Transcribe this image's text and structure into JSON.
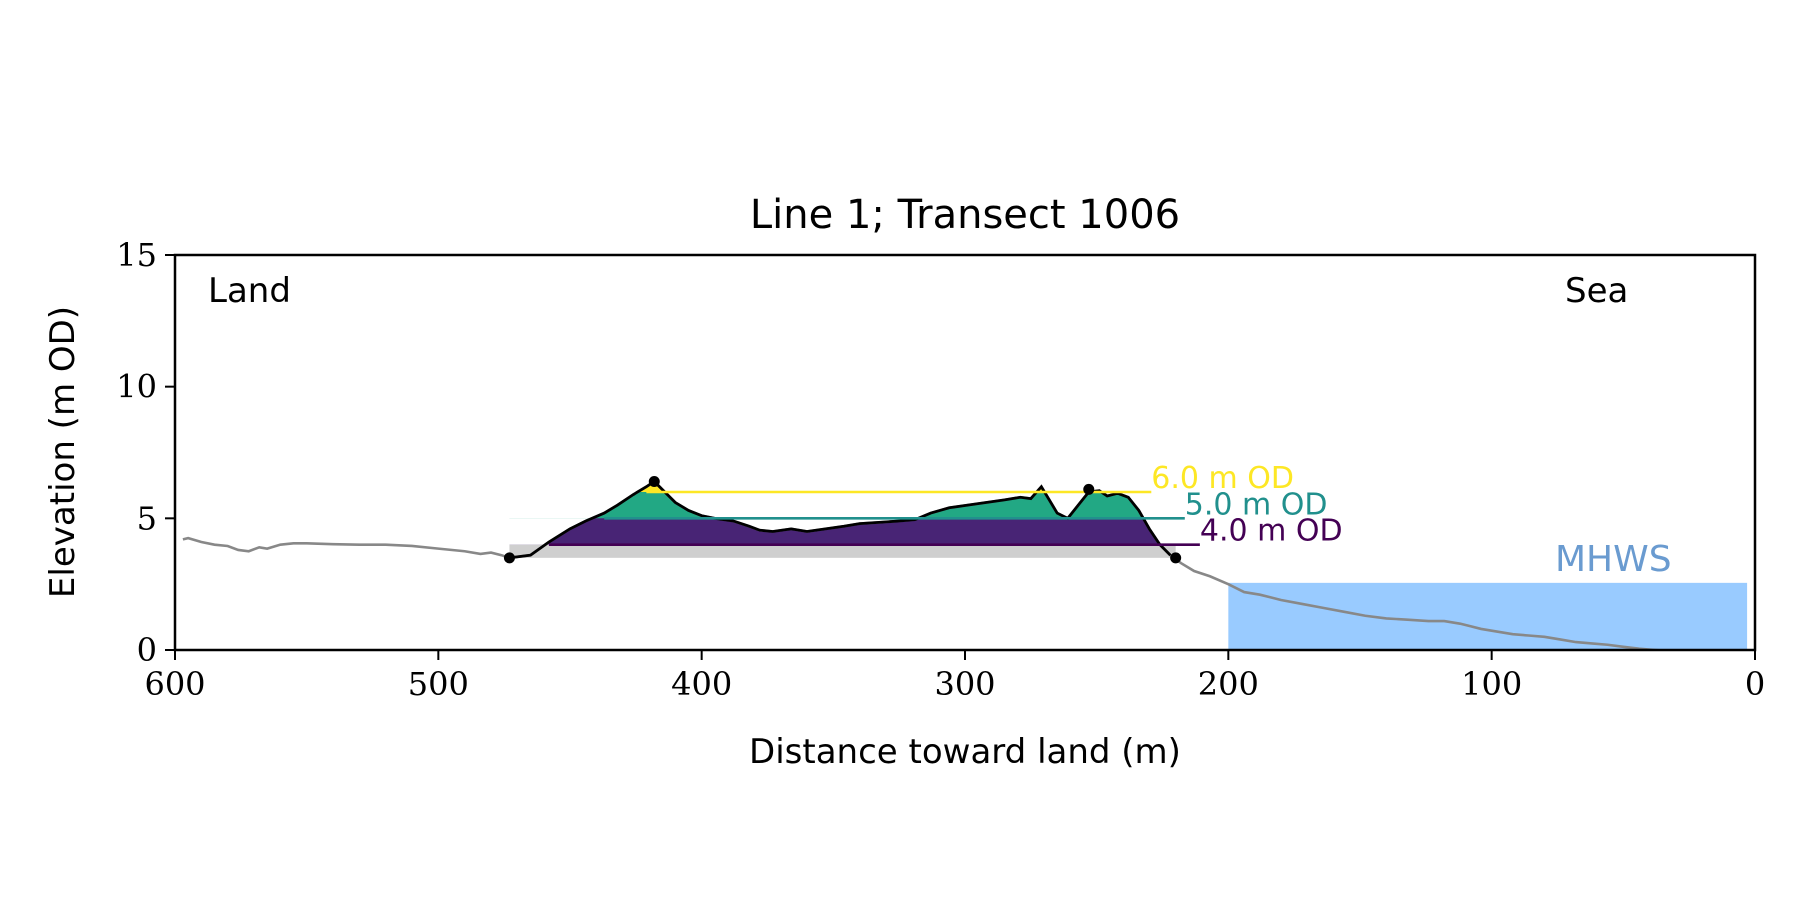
{
  "chart_data": {
    "type": "area",
    "title": "Line 1; Transect 1006",
    "xlabel": "Distance toward land (m)",
    "ylabel": "Elevation (m OD)",
    "xlim": [
      600,
      0
    ],
    "ylim": [
      0,
      15
    ],
    "x_ticks": [
      600,
      500,
      400,
      300,
      200,
      100,
      0
    ],
    "y_ticks": [
      0,
      5,
      10,
      15
    ],
    "x_tick_labels": [
      "600",
      "500",
      "400",
      "300",
      "200",
      "100",
      "0"
    ],
    "y_tick_labels": [
      "0",
      "5",
      "10",
      "15"
    ],
    "corner_labels": {
      "left": "Land",
      "right": "Sea"
    },
    "grid": false,
    "profile": {
      "x": [
        597,
        595,
        590,
        585,
        580,
        576,
        572,
        568,
        565,
        560,
        555,
        550,
        540,
        530,
        520,
        510,
        500,
        490,
        484,
        480,
        476,
        473,
        465,
        458,
        450,
        444,
        437,
        432,
        426,
        421,
        418,
        414,
        410,
        405,
        400,
        395,
        388,
        382,
        378,
        373,
        366,
        360,
        353,
        346,
        340,
        332,
        325,
        319,
        313,
        306,
        299,
        292,
        285,
        279,
        275,
        271,
        268,
        265,
        261,
        257,
        253,
        249,
        246,
        242,
        238,
        234,
        230,
        226,
        222,
        218,
        213,
        207,
        200,
        194,
        188,
        180,
        172,
        164,
        156,
        148,
        140,
        132,
        124,
        118,
        112,
        108,
        104,
        98,
        92,
        86,
        80,
        74,
        68,
        62,
        56,
        50,
        44,
        38,
        30,
        20,
        10,
        4
      ],
      "y": [
        4.2,
        4.25,
        4.1,
        4.0,
        3.95,
        3.8,
        3.75,
        3.9,
        3.85,
        4.0,
        4.05,
        4.05,
        4.02,
        4.0,
        4.0,
        3.95,
        3.85,
        3.75,
        3.65,
        3.7,
        3.6,
        3.5,
        3.6,
        4.1,
        4.6,
        4.9,
        5.2,
        5.5,
        5.9,
        6.2,
        6.4,
        6.0,
        5.6,
        5.3,
        5.1,
        5.0,
        4.9,
        4.7,
        4.55,
        4.5,
        4.6,
        4.5,
        4.6,
        4.7,
        4.8,
        4.85,
        4.9,
        4.95,
        5.2,
        5.4,
        5.5,
        5.6,
        5.7,
        5.8,
        5.75,
        6.2,
        5.7,
        5.2,
        5.0,
        5.5,
        6.0,
        6.05,
        5.85,
        5.95,
        5.8,
        5.3,
        4.6,
        4.0,
        3.6,
        3.3,
        3.0,
        2.8,
        2.5,
        2.2,
        2.1,
        1.9,
        1.75,
        1.6,
        1.45,
        1.3,
        1.2,
        1.15,
        1.1,
        1.1,
        1.0,
        0.9,
        0.8,
        0.7,
        0.6,
        0.55,
        0.5,
        0.4,
        0.3,
        0.25,
        0.2,
        0.12,
        0.05,
        0.0,
        -0.05,
        -0.1,
        -0.12,
        -0.15
      ]
    },
    "dune_segment": {
      "x_start": 473,
      "x_end": 220,
      "base_elevation": 3.5
    },
    "markers": [
      {
        "x": 473,
        "y": 3.5
      },
      {
        "x": 418,
        "y": 6.4
      },
      {
        "x": 253,
        "y": 6.1
      },
      {
        "x": 220,
        "y": 3.5
      }
    ],
    "thresholds": [
      {
        "label": "4.0 m OD",
        "level": 4.0,
        "color": "#440154"
      },
      {
        "label": "5.0 m OD",
        "level": 5.0,
        "color": "#21908d"
      },
      {
        "label": "6.0 m OD",
        "level": 6.0,
        "color": "#fde725"
      }
    ],
    "fills": [
      {
        "level": 4.0,
        "color": "#482475"
      },
      {
        "level": 5.0,
        "color": "#22a884"
      },
      {
        "level": 6.0,
        "color": "#fde725"
      }
    ],
    "mhws": {
      "label": "MHWS",
      "level": 2.55,
      "x_from": 200,
      "x_to": 3,
      "color": "#99cbff",
      "label_color": "#6a9bd0"
    },
    "colors": {
      "profile_grey": "#888888",
      "base_grey": "#cfcfcf",
      "dune_line": "#000000"
    }
  }
}
